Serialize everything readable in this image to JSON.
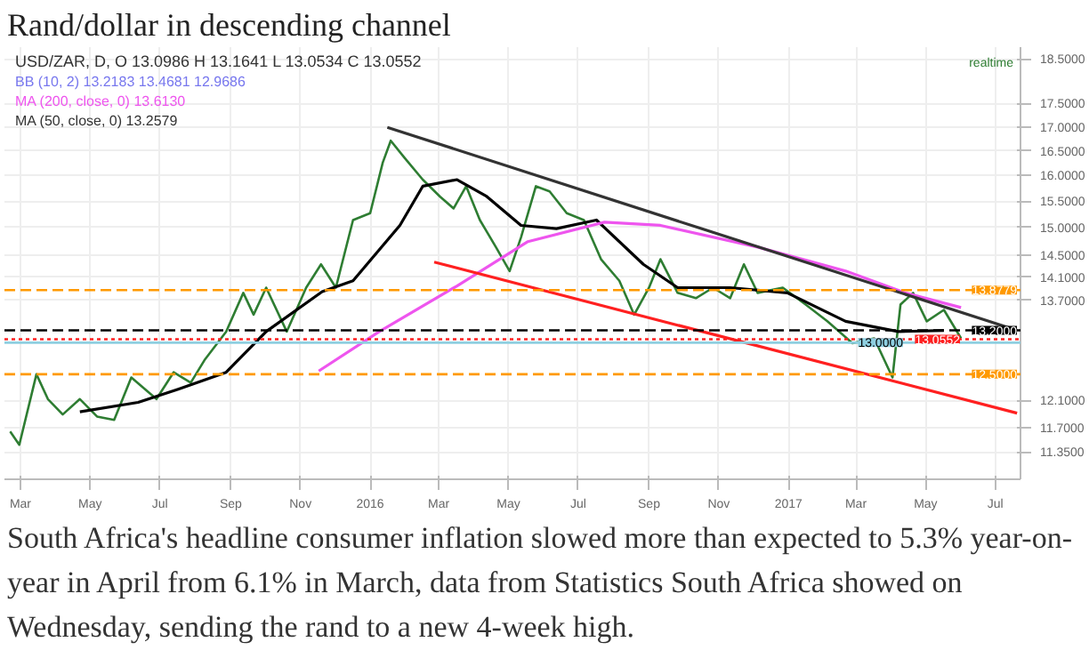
{
  "chart_data": {
    "type": "line",
    "title": "Rand/dollar in descending channel",
    "annotations": [
      "USD/ZAR, D,  O 13.0986  H 13.1641  L 13.0534  C 13.0552",
      "BB (10, 2)  13.2183  13.4681  12.9686",
      "MA (200, close, 0)  13.6130",
      "MA (50, close, 0)  13.2579",
      "realtime",
      "South Africa's headline consumer inflation slowed more than expected to 5.3% year-on-year in April from 6.1% in March, data from Statistics South Africa showed on Wednesday, sending the rand to a new 4-week high."
    ],
    "x": [
      "2015-02-20",
      "2015-02-28",
      "2015-03-15",
      "2015-03-25",
      "2015-04-07",
      "2015-04-22",
      "2015-05-07",
      "2015-05-22",
      "2015-06-06",
      "2015-06-28",
      "2015-07-13",
      "2015-07-28",
      "2015-08-09",
      "2015-08-28",
      "2015-09-12",
      "2015-09-21",
      "2015-10-02",
      "2015-10-20",
      "2015-11-06",
      "2015-11-19",
      "2015-12-02",
      "2015-12-17",
      "2016-01-01",
      "2016-01-12",
      "2016-01-19",
      "2016-01-31",
      "2016-02-16",
      "2016-03-02",
      "2016-03-14",
      "2016-03-25",
      "2016-04-06",
      "2016-04-20",
      "2016-05-02",
      "2016-05-12",
      "2016-05-25",
      "2016-06-06",
      "2016-06-21",
      "2016-07-06",
      "2016-07-21",
      "2016-08-06",
      "2016-08-19",
      "2016-09-01",
      "2016-09-11",
      "2016-09-26",
      "2016-10-12",
      "2016-10-27",
      "2016-11-11",
      "2016-11-23",
      "2016-12-05",
      "2016-12-27",
      "2017-01-16",
      "2017-02-04",
      "2017-02-26",
      "2017-03-17",
      "2017-04-02",
      "2017-04-09",
      "2017-04-20",
      "2017-05-02",
      "2017-05-17",
      "2017-06-01"
    ],
    "series": [
      {
        "color": "#2e7d32",
        "values": [
          11.64,
          11.45,
          12.5,
          12.12,
          11.89,
          12.12,
          11.86,
          11.81,
          12.45,
          12.12,
          12.53,
          12.37,
          12.72,
          13.18,
          13.83,
          13.46,
          13.92,
          13.18,
          13.92,
          14.33,
          13.92,
          15.14,
          15.27,
          16.26,
          16.71,
          16.36,
          15.92,
          15.59,
          15.36,
          15.79,
          15.14,
          14.64,
          14.21,
          14.82,
          15.79,
          15.69,
          15.27,
          15.14,
          14.42,
          14.04,
          13.46,
          13.92,
          14.42,
          13.83,
          13.74,
          13.92,
          13.74,
          14.33,
          13.83,
          13.92,
          13.63,
          13.35,
          12.99,
          13.07,
          12.45,
          13.63,
          13.83,
          13.35,
          13.54,
          13.07
        ]
      },
      {
        "color": "#000000",
        "x": [
          "2015-04-22",
          "2015-06-12",
          "2015-07-17",
          "2015-08-28",
          "2015-10-02",
          "2015-11-20",
          "2015-12-17",
          "2016-01-27",
          "2016-02-16",
          "2016-03-17",
          "2016-04-12",
          "2016-05-12",
          "2016-06-12",
          "2016-07-17",
          "2016-08-27",
          "2016-09-26",
          "2016-11-11",
          "2016-12-31",
          "2017-02-20",
          "2017-04-07",
          "2017-05-17"
        ],
        "values": [
          11.93,
          12.07,
          12.27,
          12.53,
          13.18,
          13.85,
          14.04,
          15.04,
          15.79,
          15.92,
          15.59,
          15.04,
          14.98,
          15.14,
          14.33,
          13.92,
          13.92,
          13.83,
          13.35,
          13.18,
          13.2
        ]
      },
      {
        "color": "#ee55ee",
        "x": [
          "2015-11-17",
          "2016-01-09",
          "2016-03-17",
          "2016-05-18",
          "2016-07-24",
          "2016-09-11",
          "2016-12-05",
          "2017-02-20",
          "2017-04-13",
          "2017-06-01"
        ],
        "values": [
          12.55,
          13.18,
          13.95,
          14.74,
          15.1,
          15.04,
          14.64,
          14.21,
          13.83,
          13.58
        ]
      },
      {
        "color": "#333333",
        "x": [
          "2016-01-16",
          "2017-07-20"
        ],
        "values": [
          16.99,
          13.2
        ]
      },
      {
        "color": "#ff2020",
        "x": [
          "2016-02-26",
          "2017-07-20"
        ],
        "values": [
          14.37,
          11.91
        ]
      }
    ],
    "ref_lines": [
      {
        "axis": "y",
        "value": 13.8779,
        "label": "13.8779",
        "color": "#ff9900",
        "line_style": "dashed"
      },
      {
        "axis": "y",
        "value": 13.2,
        "label": "13.2000",
        "color": "#000000",
        "line_style": "dashed"
      },
      {
        "axis": "y",
        "value": 13.0552,
        "label": "13.0552",
        "color": "#ff2020",
        "line_style": "dotted"
      },
      {
        "axis": "y",
        "value": 13.0,
        "label": "13.0000",
        "color": "#8ecfe0",
        "line_style": "solid"
      },
      {
        "axis": "y",
        "value": 12.5,
        "label": "12.5000",
        "color": "#ff9900",
        "line_style": "dashed"
      }
    ],
    "log": true,
    "xlim": [
      "2015-02-15",
      "2017-07-23"
    ],
    "xticks": [
      {
        "value": "2015-03-01",
        "label": "Mar"
      },
      {
        "value": "2015-05-01",
        "label": "May"
      },
      {
        "value": "2015-07-01",
        "label": "Jul"
      },
      {
        "value": "2015-09-01",
        "label": "Sep"
      },
      {
        "value": "2015-11-01",
        "label": "Nov"
      },
      {
        "value": "2016-01-01",
        "label": "2016"
      },
      {
        "value": "2016-03-01",
        "label": "Mar"
      },
      {
        "value": "2016-05-01",
        "label": "May"
      },
      {
        "value": "2016-07-01",
        "label": "Jul"
      },
      {
        "value": "2016-09-01",
        "label": "Sep"
      },
      {
        "value": "2016-11-01",
        "label": "Nov"
      },
      {
        "value": "2017-01-01",
        "label": "2017"
      },
      {
        "value": "2017-03-01",
        "label": "Mar"
      },
      {
        "value": "2017-05-01",
        "label": "May"
      },
      {
        "value": "2017-07-01",
        "label": "Jul"
      }
    ],
    "ylim": [
      10.97,
      18.77
    ],
    "yticks": [
      {
        "value": 18.5,
        "label": "18.5000"
      },
      {
        "value": 17.5,
        "label": "17.5000"
      },
      {
        "value": 17.0,
        "label": "17.0000"
      },
      {
        "value": 16.5,
        "label": "16.5000"
      },
      {
        "value": 16.0,
        "label": "16.0000"
      },
      {
        "value": 15.5,
        "label": "15.5000"
      },
      {
        "value": 15.0,
        "label": "15.0000"
      },
      {
        "value": 14.5,
        "label": "14.5000"
      },
      {
        "value": 14.1,
        "label": "14.1000"
      },
      {
        "value": 13.7,
        "label": "13.7000"
      },
      {
        "value": 12.1,
        "label": "12.1000"
      },
      {
        "value": 11.7,
        "label": "11.7000"
      },
      {
        "value": 11.35,
        "label": "11.3500"
      }
    ],
    "grid": true,
    "line_style": "solid"
  }
}
